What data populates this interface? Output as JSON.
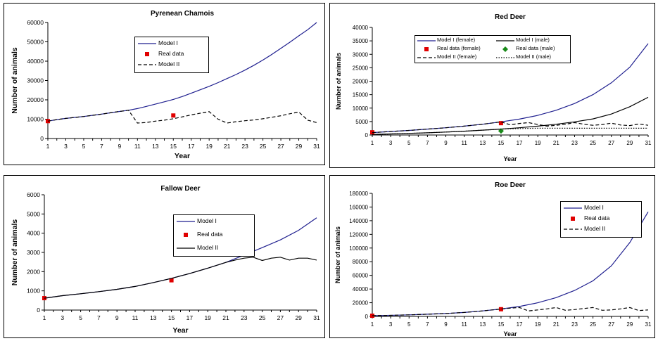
{
  "chart_data": [
    {
      "id": "chamois",
      "type": "line",
      "title": "Pyrenean Chamois",
      "xlabel": "Year",
      "ylabel": "Number of animals",
      "xlim": [
        1,
        31
      ],
      "xticks": [
        1,
        3,
        5,
        7,
        9,
        11,
        13,
        15,
        17,
        19,
        21,
        23,
        25,
        27,
        29,
        31
      ],
      "ylim": [
        0,
        60000
      ],
      "yticks": [
        0,
        10000,
        20000,
        30000,
        40000,
        50000,
        60000
      ],
      "legend": "top-center",
      "series": [
        {
          "name": "Model I",
          "style": "solid",
          "color": "#1f1f8f",
          "x": [
            1,
            2,
            3,
            4,
            5,
            6,
            7,
            8,
            9,
            10,
            11,
            12,
            13,
            14,
            15,
            16,
            17,
            18,
            19,
            20,
            21,
            22,
            23,
            24,
            25,
            26,
            27,
            28,
            29,
            30,
            31
          ],
          "y": [
            9000,
            9800,
            10400,
            10900,
            11400,
            12000,
            12600,
            13300,
            14000,
            14600,
            15500,
            16600,
            17800,
            19000,
            20200,
            21700,
            23400,
            25200,
            27000,
            28900,
            31000,
            33100,
            35400,
            37900,
            40600,
            43500,
            46600,
            49800,
            53100,
            56300,
            60000
          ]
        },
        {
          "name": "Real data",
          "style": "marker",
          "color": "#e00000",
          "x": [
            1,
            15
          ],
          "y": [
            9000,
            11900
          ]
        },
        {
          "name": "Model II",
          "style": "dashed",
          "color": "#000000",
          "x": [
            1,
            2,
            3,
            4,
            5,
            6,
            7,
            8,
            9,
            10,
            11,
            12,
            13,
            14,
            15,
            16,
            17,
            18,
            19,
            20,
            21,
            22,
            23,
            24,
            25,
            26,
            27,
            28,
            29,
            30,
            31
          ],
          "y": [
            9000,
            9800,
            10400,
            10900,
            11400,
            12000,
            12600,
            13300,
            14000,
            14600,
            8000,
            8300,
            9000,
            9500,
            10200,
            11200,
            12200,
            13100,
            13900,
            10000,
            8000,
            8700,
            9200,
            9600,
            10200,
            11000,
            11800,
            12800,
            13700,
            9500,
            8200
          ]
        }
      ]
    },
    {
      "id": "reddeer",
      "type": "line",
      "title": "Red Deer",
      "xlabel": "Year",
      "ylabel": "Number of animals",
      "xlim": [
        1,
        31
      ],
      "xticks": [
        1,
        3,
        5,
        7,
        9,
        11,
        13,
        15,
        17,
        19,
        21,
        23,
        25,
        27,
        29,
        31
      ],
      "ylim": [
        0,
        40000
      ],
      "yticks": [
        0,
        5000,
        10000,
        15000,
        20000,
        25000,
        30000,
        35000,
        40000
      ],
      "legend": "top",
      "series": [
        {
          "name": "Model I (female)",
          "style": "solid",
          "color": "#1f1f8f",
          "x": [
            1,
            3,
            5,
            7,
            9,
            11,
            13,
            15,
            17,
            19,
            21,
            23,
            25,
            27,
            29,
            31
          ],
          "y": [
            900,
            1300,
            1700,
            2200,
            2700,
            3300,
            4000,
            4900,
            5900,
            7300,
            9200,
            11700,
            15000,
            19400,
            25200,
            34000
          ]
        },
        {
          "name": "Model I (male)",
          "style": "solid",
          "color": "#000000",
          "x": [
            1,
            3,
            5,
            7,
            9,
            11,
            13,
            15,
            17,
            19,
            21,
            23,
            25,
            27,
            29,
            31
          ],
          "y": [
            200,
            400,
            600,
            800,
            1100,
            1400,
            1800,
            2200,
            2700,
            3300,
            4000,
            4900,
            6000,
            7800,
            10500,
            14000
          ]
        },
        {
          "name": "Real data (female)",
          "style": "marker",
          "color": "#e00000",
          "x": [
            1,
            15
          ],
          "y": [
            1000,
            4400
          ]
        },
        {
          "name": "Real data (male)",
          "style": "diamond",
          "color": "#1a8a1a",
          "x": [
            15
          ],
          "y": [
            1500
          ]
        },
        {
          "name": "Model II (female)",
          "style": "dashed",
          "color": "#000000",
          "x": [
            1,
            3,
            5,
            7,
            9,
            11,
            13,
            15,
            16,
            17,
            18,
            19,
            20,
            21,
            22,
            23,
            24,
            25,
            26,
            27,
            28,
            29,
            30,
            31
          ],
          "y": [
            900,
            1300,
            1700,
            2200,
            2700,
            3300,
            4000,
            4900,
            3800,
            4300,
            4600,
            3900,
            3300,
            3600,
            4000,
            4600,
            4000,
            3600,
            3900,
            4400,
            3700,
            3500,
            4100,
            3600
          ]
        },
        {
          "name": "Model II (male)",
          "style": "dotted",
          "color": "#000000",
          "x": [
            1,
            3,
            5,
            7,
            9,
            11,
            13,
            15,
            17,
            19,
            21,
            23,
            25,
            27,
            29,
            31
          ],
          "y": [
            200,
            400,
            600,
            800,
            1100,
            1400,
            1800,
            2200,
            2400,
            2500,
            2500,
            2500,
            2500,
            2500,
            2500,
            2500
          ]
        }
      ]
    },
    {
      "id": "fallow",
      "type": "line",
      "title": "Fallow Deer",
      "xlabel": "Year",
      "ylabel": "Number of animals",
      "xlim": [
        1,
        31
      ],
      "xticks": [
        1,
        3,
        5,
        7,
        9,
        11,
        13,
        15,
        17,
        19,
        21,
        23,
        25,
        27,
        29,
        31
      ],
      "ylim": [
        0,
        6000
      ],
      "yticks": [
        0,
        1000,
        2000,
        3000,
        4000,
        5000,
        6000
      ],
      "legend": "top-right",
      "series": [
        {
          "name": "Model I",
          "style": "solid",
          "color": "#1f1f8f",
          "x": [
            1,
            3,
            5,
            7,
            9,
            11,
            13,
            15,
            17,
            19,
            21,
            23,
            25,
            27,
            29,
            31
          ],
          "y": [
            620,
            750,
            850,
            960,
            1080,
            1230,
            1430,
            1650,
            1900,
            2180,
            2480,
            2860,
            3250,
            3650,
            4150,
            4800
          ]
        },
        {
          "name": "Real data",
          "style": "marker",
          "color": "#e00000",
          "x": [
            1,
            15
          ],
          "y": [
            620,
            1550
          ]
        },
        {
          "name": "Model II",
          "style": "solid",
          "color": "#000000",
          "x": [
            1,
            3,
            5,
            7,
            9,
            11,
            13,
            15,
            17,
            19,
            21,
            22,
            23,
            24,
            25,
            26,
            27,
            28,
            29,
            30,
            31
          ],
          "y": [
            620,
            750,
            850,
            960,
            1080,
            1230,
            1430,
            1650,
            1900,
            2180,
            2480,
            2600,
            2700,
            2750,
            2580,
            2700,
            2750,
            2600,
            2700,
            2700,
            2600
          ]
        }
      ]
    },
    {
      "id": "roedeer",
      "type": "line",
      "title": "Roe Deer",
      "xlabel": "Year",
      "ylabel": "Number of animals",
      "xlim": [
        1,
        31
      ],
      "xticks": [
        1,
        3,
        5,
        7,
        9,
        11,
        13,
        15,
        17,
        19,
        21,
        23,
        25,
        27,
        29,
        31
      ],
      "ylim": [
        0,
        180000
      ],
      "yticks": [
        0,
        20000,
        40000,
        60000,
        80000,
        100000,
        120000,
        140000,
        160000,
        180000
      ],
      "legend": "top-right",
      "series": [
        {
          "name": "Model I",
          "style": "solid",
          "color": "#1f1f8f",
          "x": [
            1,
            3,
            5,
            7,
            9,
            11,
            13,
            15,
            17,
            19,
            21,
            23,
            25,
            27,
            29,
            31
          ],
          "y": [
            1000,
            1500,
            2300,
            3200,
            4200,
            5800,
            8000,
            10800,
            14500,
            20000,
            27500,
            38000,
            52000,
            74000,
            108000,
            153000
          ]
        },
        {
          "name": "Real data",
          "style": "marker",
          "color": "#e00000",
          "x": [
            1,
            15
          ],
          "y": [
            1000,
            10500
          ]
        },
        {
          "name": "Model II",
          "style": "dashed",
          "color": "#000000",
          "x": [
            1,
            3,
            5,
            7,
            9,
            11,
            13,
            15,
            16,
            17,
            18,
            19,
            20,
            21,
            22,
            23,
            24,
            25,
            26,
            27,
            28,
            29,
            30,
            31
          ],
          "y": [
            1000,
            1500,
            2300,
            3200,
            4200,
            5800,
            8000,
            10800,
            12000,
            13000,
            8000,
            9500,
            11000,
            13000,
            9000,
            10000,
            11500,
            13000,
            9000,
            9500,
            11000,
            13000,
            8500,
            9500
          ]
        }
      ]
    }
  ]
}
